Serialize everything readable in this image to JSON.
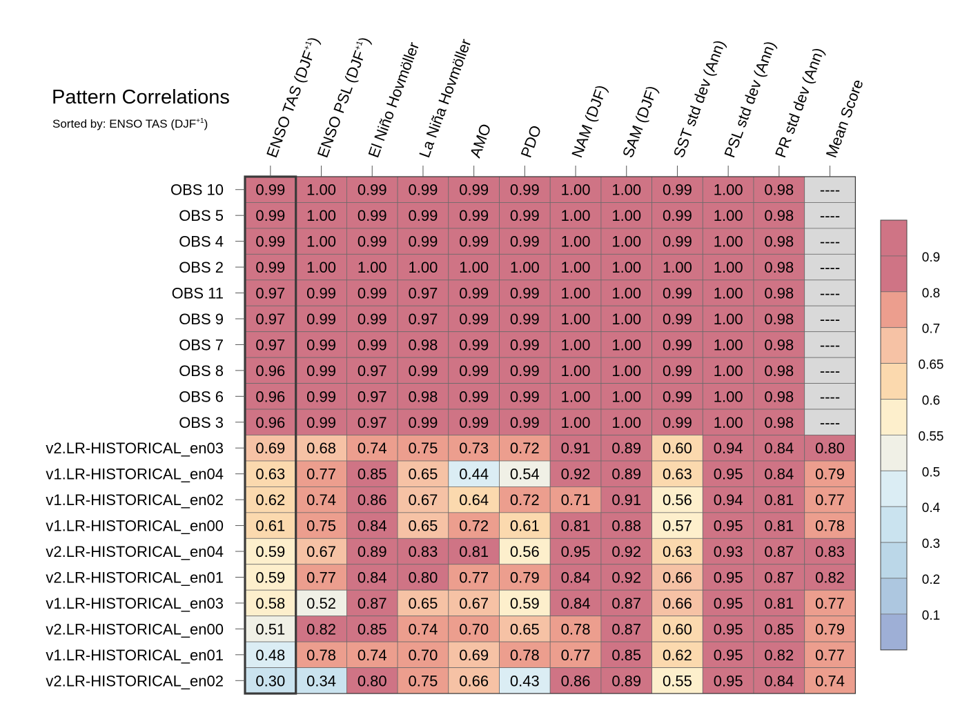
{
  "chart_data": {
    "type": "heatmap",
    "title": "Pattern Correlations",
    "subtitle_prefix": "Sorted by: ENSO TAS (DJF",
    "subtitle_sup": "+1",
    "subtitle_suffix": ")",
    "columns": [
      {
        "label": "ENSO TAS (DJF",
        "sup": "+1",
        "tail": ")"
      },
      {
        "label": "ENSO PSL (DJF",
        "sup": "+1",
        "tail": ")"
      },
      {
        "label": "El Niño Hovmöller"
      },
      {
        "label": "La Niña Hovmöller"
      },
      {
        "label": "AMO"
      },
      {
        "label": "PDO"
      },
      {
        "label": "NAM (DJF)"
      },
      {
        "label": "SAM (DJF)"
      },
      {
        "label": "SST std dev (Ann)"
      },
      {
        "label": "PSL std dev (Ann)"
      },
      {
        "label": "PR std dev (Ann)"
      },
      {
        "label": "Mean Score"
      }
    ],
    "rows": [
      {
        "name": "OBS 10",
        "values": [
          "0.99",
          "1.00",
          "0.99",
          "0.99",
          "0.99",
          "0.99",
          "1.00",
          "1.00",
          "0.99",
          "1.00",
          "0.98",
          "----"
        ]
      },
      {
        "name": "OBS 5",
        "values": [
          "0.99",
          "1.00",
          "0.99",
          "0.99",
          "0.99",
          "0.99",
          "1.00",
          "1.00",
          "0.99",
          "1.00",
          "0.98",
          "----"
        ]
      },
      {
        "name": "OBS 4",
        "values": [
          "0.99",
          "1.00",
          "0.99",
          "0.99",
          "0.99",
          "0.99",
          "1.00",
          "1.00",
          "0.99",
          "1.00",
          "0.98",
          "----"
        ]
      },
      {
        "name": "OBS 2",
        "values": [
          "0.99",
          "1.00",
          "1.00",
          "1.00",
          "1.00",
          "1.00",
          "1.00",
          "1.00",
          "1.00",
          "1.00",
          "0.98",
          "----"
        ]
      },
      {
        "name": "OBS 11",
        "values": [
          "0.97",
          "0.99",
          "0.99",
          "0.97",
          "0.99",
          "0.99",
          "1.00",
          "1.00",
          "0.99",
          "1.00",
          "0.98",
          "----"
        ]
      },
      {
        "name": "OBS 9",
        "values": [
          "0.97",
          "0.99",
          "0.99",
          "0.97",
          "0.99",
          "0.99",
          "1.00",
          "1.00",
          "0.99",
          "1.00",
          "0.98",
          "----"
        ]
      },
      {
        "name": "OBS 7",
        "values": [
          "0.97",
          "0.99",
          "0.99",
          "0.98",
          "0.99",
          "0.99",
          "1.00",
          "1.00",
          "0.99",
          "1.00",
          "0.98",
          "----"
        ]
      },
      {
        "name": "OBS 8",
        "values": [
          "0.96",
          "0.99",
          "0.97",
          "0.99",
          "0.99",
          "0.99",
          "1.00",
          "1.00",
          "0.99",
          "1.00",
          "0.98",
          "----"
        ]
      },
      {
        "name": "OBS 6",
        "values": [
          "0.96",
          "0.99",
          "0.97",
          "0.98",
          "0.99",
          "0.99",
          "1.00",
          "1.00",
          "0.99",
          "1.00",
          "0.98",
          "----"
        ]
      },
      {
        "name": "OBS 3",
        "values": [
          "0.96",
          "0.99",
          "0.97",
          "0.99",
          "0.99",
          "0.99",
          "1.00",
          "1.00",
          "0.99",
          "1.00",
          "0.98",
          "----"
        ]
      },
      {
        "name": "v2.LR-HISTORICAL_en03",
        "values": [
          "0.69",
          "0.68",
          "0.74",
          "0.75",
          "0.73",
          "0.72",
          "0.91",
          "0.89",
          "0.60",
          "0.94",
          "0.84",
          "0.80"
        ]
      },
      {
        "name": "v1.LR-HISTORICAL_en04",
        "values": [
          "0.63",
          "0.77",
          "0.85",
          "0.65",
          "0.44",
          "0.54",
          "0.92",
          "0.89",
          "0.63",
          "0.95",
          "0.84",
          "0.79"
        ]
      },
      {
        "name": "v1.LR-HISTORICAL_en02",
        "values": [
          "0.62",
          "0.74",
          "0.86",
          "0.67",
          "0.64",
          "0.72",
          "0.71",
          "0.91",
          "0.56",
          "0.94",
          "0.81",
          "0.77"
        ]
      },
      {
        "name": "v1.LR-HISTORICAL_en00",
        "values": [
          "0.61",
          "0.75",
          "0.84",
          "0.65",
          "0.72",
          "0.61",
          "0.81",
          "0.88",
          "0.57",
          "0.95",
          "0.81",
          "0.78"
        ]
      },
      {
        "name": "v2.LR-HISTORICAL_en04",
        "values": [
          "0.59",
          "0.67",
          "0.89",
          "0.83",
          "0.81",
          "0.56",
          "0.95",
          "0.92",
          "0.63",
          "0.93",
          "0.87",
          "0.83"
        ]
      },
      {
        "name": "v2.LR-HISTORICAL_en01",
        "values": [
          "0.59",
          "0.77",
          "0.84",
          "0.80",
          "0.77",
          "0.79",
          "0.84",
          "0.92",
          "0.66",
          "0.95",
          "0.87",
          "0.82"
        ]
      },
      {
        "name": "v1.LR-HISTORICAL_en03",
        "values": [
          "0.58",
          "0.52",
          "0.87",
          "0.65",
          "0.67",
          "0.59",
          "0.84",
          "0.87",
          "0.66",
          "0.95",
          "0.81",
          "0.77"
        ]
      },
      {
        "name": "v2.LR-HISTORICAL_en00",
        "values": [
          "0.51",
          "0.82",
          "0.85",
          "0.74",
          "0.70",
          "0.65",
          "0.78",
          "0.87",
          "0.60",
          "0.95",
          "0.85",
          "0.79"
        ]
      },
      {
        "name": "v1.LR-HISTORICAL_en01",
        "values": [
          "0.48",
          "0.78",
          "0.74",
          "0.70",
          "0.69",
          "0.78",
          "0.77",
          "0.85",
          "0.62",
          "0.95",
          "0.82",
          "0.77"
        ]
      },
      {
        "name": "v2.LR-HISTORICAL_en02",
        "values": [
          "0.30",
          "0.34",
          "0.80",
          "0.75",
          "0.66",
          "0.43",
          "0.86",
          "0.89",
          "0.55",
          "0.95",
          "0.84",
          "0.74"
        ]
      }
    ],
    "missing_value_label": "----",
    "missing_color": "#d9d9d9",
    "highlighted_column": 0,
    "colorbar": {
      "labels": [
        "0.9",
        "0.8",
        "0.7",
        "0.65",
        "0.6",
        "0.55",
        "0.5",
        "0.4",
        "0.3",
        "0.2",
        "0.1"
      ],
      "thresholds": [
        0.1,
        0.2,
        0.3,
        0.4,
        0.5,
        0.55,
        0.6,
        0.65,
        0.7,
        0.8,
        0.9
      ],
      "colors": [
        "#9eafd6",
        "#adc7e0",
        "#bbd7e8",
        "#cae3ef",
        "#dbedf4",
        "#f0f0e6",
        "#fdefcc",
        "#fbd9ae",
        "#f6c2a5",
        "#ec9e8e",
        "#cf7485",
        "#cf7485"
      ]
    }
  }
}
